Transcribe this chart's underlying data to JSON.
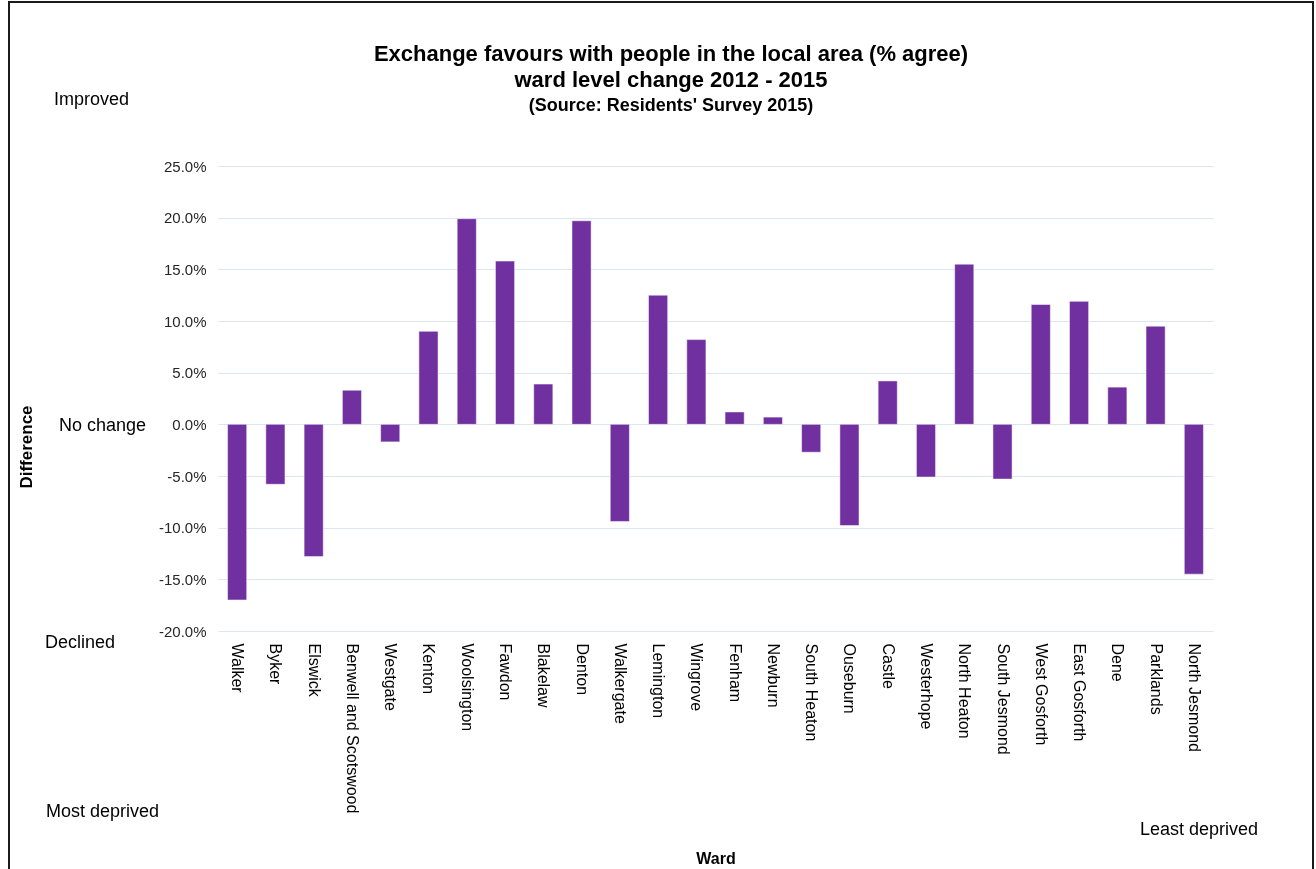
{
  "chart_data": {
    "type": "bar",
    "title": "Exchange favours with people in the local area (% agree)\nward level change 2012 - 2015",
    "subtitle": "(Source: Residents' Survey 2015)",
    "xlabel": "Ward",
    "categories": [
      "Walker",
      "Byker",
      "Elswick",
      "Benwell and Scotswood",
      "Westgate",
      "Kenton",
      "Woolsington",
      "Fawdon",
      "Blakelaw",
      "Denton",
      "Walkergate",
      "Lemington",
      "Wingrove",
      "Fenham",
      "Newburn",
      "South Heaton",
      "Ouseburn",
      "Castle",
      "Westerhope",
      "North Heaton",
      "South Jesmond",
      "West Gosforth",
      "East Gosforth",
      "Dene",
      "Parklands",
      "North Jesmond"
    ],
    "values": [
      -17.0,
      -5.8,
      -12.8,
      3.3,
      -1.7,
      9.0,
      19.9,
      15.8,
      3.9,
      19.7,
      -9.4,
      12.5,
      8.2,
      1.2,
      0.7,
      -2.7,
      -9.8,
      4.2,
      -5.1,
      15.5,
      -5.3,
      11.6,
      11.9,
      3.6,
      9.5,
      -14.5
    ],
    "color": "#7030a0",
    "ylim": [
      -20,
      25
    ],
    "yticks": [
      {
        "value": -20,
        "label": "-20.0%"
      },
      {
        "value": -15,
        "label": "-15.0%"
      },
      {
        "value": -10,
        "label": "-10.0%"
      },
      {
        "value": -5,
        "label": "-5.0%"
      },
      {
        "value": 0,
        "label": "0.0%"
      },
      {
        "value": 5,
        "label": "5.0%"
      },
      {
        "value": 10,
        "label": "10.0%"
      },
      {
        "value": 15,
        "label": "15.0%"
      },
      {
        "value": 20,
        "label": "20.0%"
      },
      {
        "value": 25,
        "label": "25.0%"
      }
    ],
    "grid": "y",
    "annotations": [
      "Improved",
      "Difference",
      "No change",
      "Declined",
      "Most deprived",
      "Least deprived"
    ]
  }
}
